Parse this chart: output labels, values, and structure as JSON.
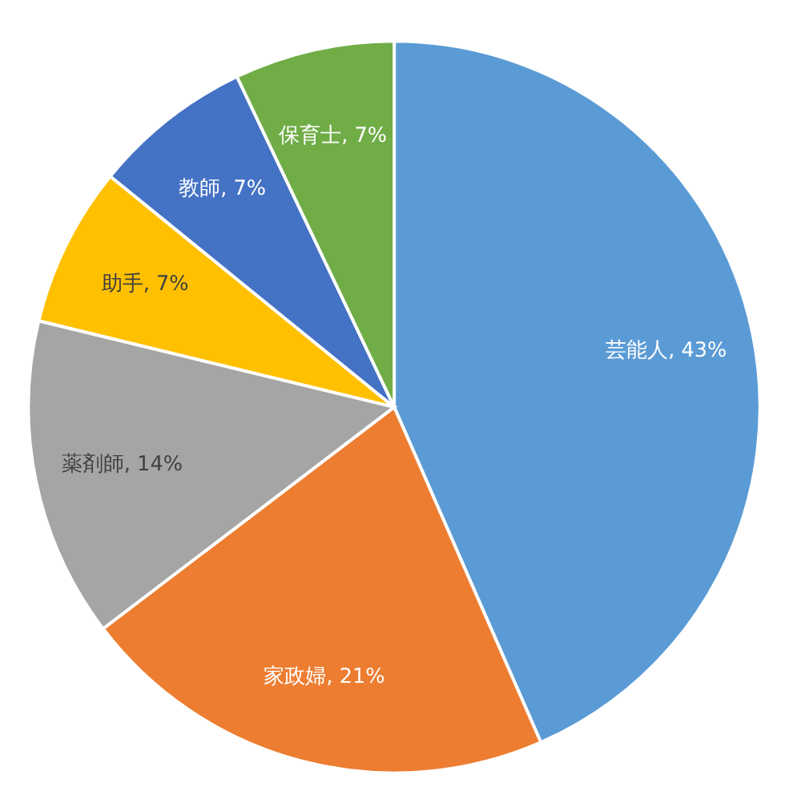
{
  "chart_data": {
    "type": "pie",
    "categories": [
      "芸能人",
      "家政婦",
      "薬剤師",
      "助手",
      "教師",
      "保育士"
    ],
    "values": [
      43,
      21,
      14,
      7,
      7,
      7
    ],
    "value_labels": [
      "43%",
      "21%",
      "14%",
      "7%",
      "7%",
      "7%"
    ],
    "colors": [
      "#5b9bd5",
      "#ed7d31",
      "#a5a5a5",
      "#ffc000",
      "#4472c4",
      "#70ad47"
    ],
    "legend": false
  }
}
